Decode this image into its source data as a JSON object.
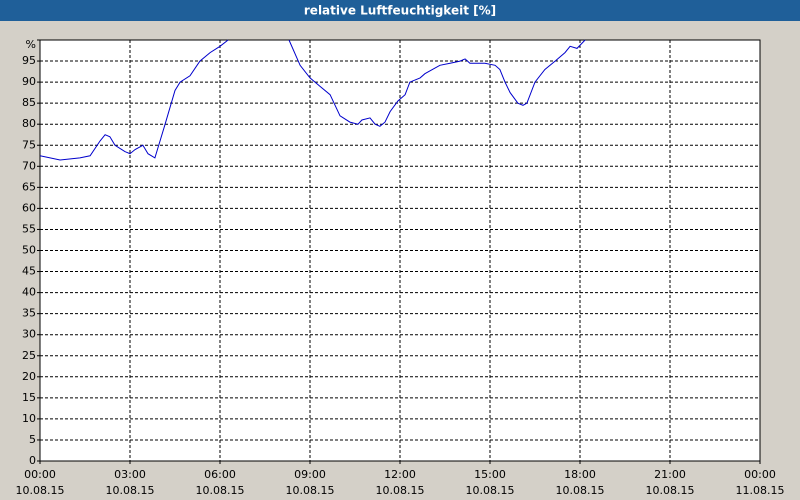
{
  "chart_data": {
    "type": "line",
    "title": "relative Luftfeuchtigkeit [%]",
    "color": "#0000cc",
    "grid": true,
    "xlim": [
      0,
      24
    ],
    "ylim": [
      0,
      100
    ],
    "xticks": [
      {
        "value": 0,
        "label": "00:00",
        "sublabel": "10.08.15"
      },
      {
        "value": 3,
        "label": "03:00",
        "sublabel": "10.08.15"
      },
      {
        "value": 6,
        "label": "06:00",
        "sublabel": "10.08.15"
      },
      {
        "value": 9,
        "label": "09:00",
        "sublabel": "10.08.15"
      },
      {
        "value": 12,
        "label": "12:00",
        "sublabel": "10.08.15"
      },
      {
        "value": 15,
        "label": "15:00",
        "sublabel": "10.08.15"
      },
      {
        "value": 18,
        "label": "18:00",
        "sublabel": "10.08.15"
      },
      {
        "value": 21,
        "label": "21:00",
        "sublabel": "10.08.15"
      },
      {
        "value": 24,
        "label": "00:00",
        "sublabel": "11.08.15"
      }
    ],
    "yticks": [
      0,
      5,
      10,
      15,
      20,
      25,
      30,
      35,
      40,
      45,
      50,
      55,
      60,
      65,
      70,
      75,
      80,
      85,
      90,
      95,
      {
        "value": 100,
        "label": "%"
      }
    ],
    "x": [
      0,
      0.67,
      1.33,
      1.67,
      2,
      2.17,
      2.33,
      2.5,
      2.83,
      3,
      3.17,
      3.43,
      3.6,
      3.83,
      4.17,
      4.5,
      4.67,
      5,
      5.33,
      5.67,
      6,
      6.27,
      7,
      8.3,
      8.67,
      9,
      9.33,
      9.67,
      10,
      10.33,
      10.6,
      10.73,
      11,
      11.17,
      11.33,
      11.5,
      11.67,
      11.93,
      12.17,
      12.33,
      12.67,
      12.83,
      13.33,
      13.67,
      14,
      14.17,
      14.33,
      14.83,
      15.17,
      15.33,
      15.5,
      15.67,
      15.93,
      16.1,
      16.23,
      16.5,
      16.83,
      17.17,
      17.5,
      17.67,
      17.9,
      18.17
    ],
    "values": [
      72.5,
      71.5,
      72,
      72.5,
      76,
      77.5,
      77,
      75,
      73.5,
      73,
      74,
      75,
      73,
      72,
      80,
      88,
      90,
      91.5,
      95,
      97,
      98.5,
      100,
      null,
      100,
      94,
      91,
      89,
      87,
      82,
      80.5,
      80,
      81,
      81.5,
      80,
      79.5,
      80.5,
      83,
      85.5,
      87,
      90,
      91,
      92,
      94,
      94.5,
      95,
      95.5,
      94.5,
      94.5,
      94,
      93,
      90,
      87.5,
      85,
      84.5,
      85,
      90,
      93,
      95,
      97,
      98.5,
      98,
      100
    ]
  }
}
